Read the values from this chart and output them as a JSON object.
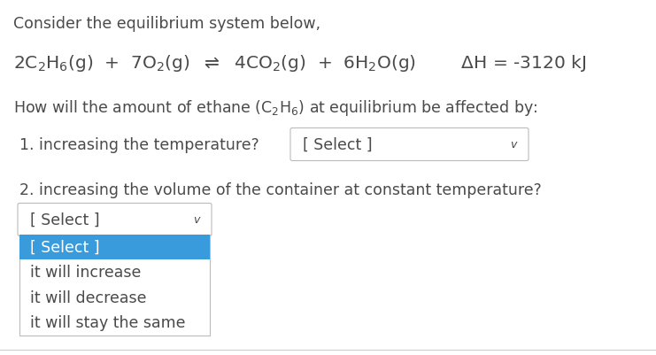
{
  "bg_color": "#ffffff",
  "text_color": "#4a4a4a",
  "highlight_color": "#3a9bdc",
  "dropdown_border": "#bbbbbb",
  "line1": "Consider the equilibrium system below,",
  "q1": "1. increasing the temperature?",
  "q2": "2. increasing the volume of the container at constant temperature?",
  "select_text": "[ Select ]",
  "dropdown_options": [
    "[ Select ]",
    "it will increase",
    "it will decrease",
    "it will stay the same"
  ],
  "font_size_main": 12.5,
  "font_size_eq": 14.5,
  "fig_w": 7.41,
  "fig_h": 4.02,
  "dpi": 100
}
